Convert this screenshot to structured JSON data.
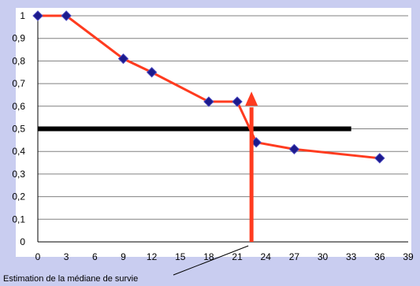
{
  "chart_data": {
    "type": "line",
    "x": [
      0,
      3,
      9,
      12,
      18,
      21,
      23,
      27,
      36
    ],
    "series": [
      {
        "values": [
          1,
          1,
          0.81,
          0.75,
          0.62,
          0.62,
          0.44,
          0.41,
          0.37
        ],
        "line_color": "#ff3b1f",
        "marker_color": "#1c1a8c",
        "marker": "diamond"
      }
    ],
    "xlim": [
      0,
      39
    ],
    "ylim": [
      0,
      1
    ],
    "xticks": [
      "0",
      "3",
      "6",
      "9",
      "12",
      "15",
      "18",
      "21",
      "24",
      "27",
      "30",
      "33",
      "36",
      "39"
    ],
    "yticks": [
      "0",
      "0,1",
      "0,2",
      "0,3",
      "0,4",
      "0,5",
      "0,6",
      "0,7",
      "0,8",
      "0,9",
      "1"
    ],
    "grid": "horizontal",
    "median_line": {
      "y": 0.5,
      "x_from": 0,
      "x_to": 33,
      "color": "#000000"
    },
    "median_arrow": {
      "x": 22.5,
      "y_from": 0,
      "y_to": 0.63,
      "color": "#ff3b1f"
    },
    "annotation": {
      "text": "Estimation de la médiane de survie",
      "points_to_x": 22.5
    },
    "background": "#ffffff",
    "frame_color": "#c9cdf0"
  }
}
